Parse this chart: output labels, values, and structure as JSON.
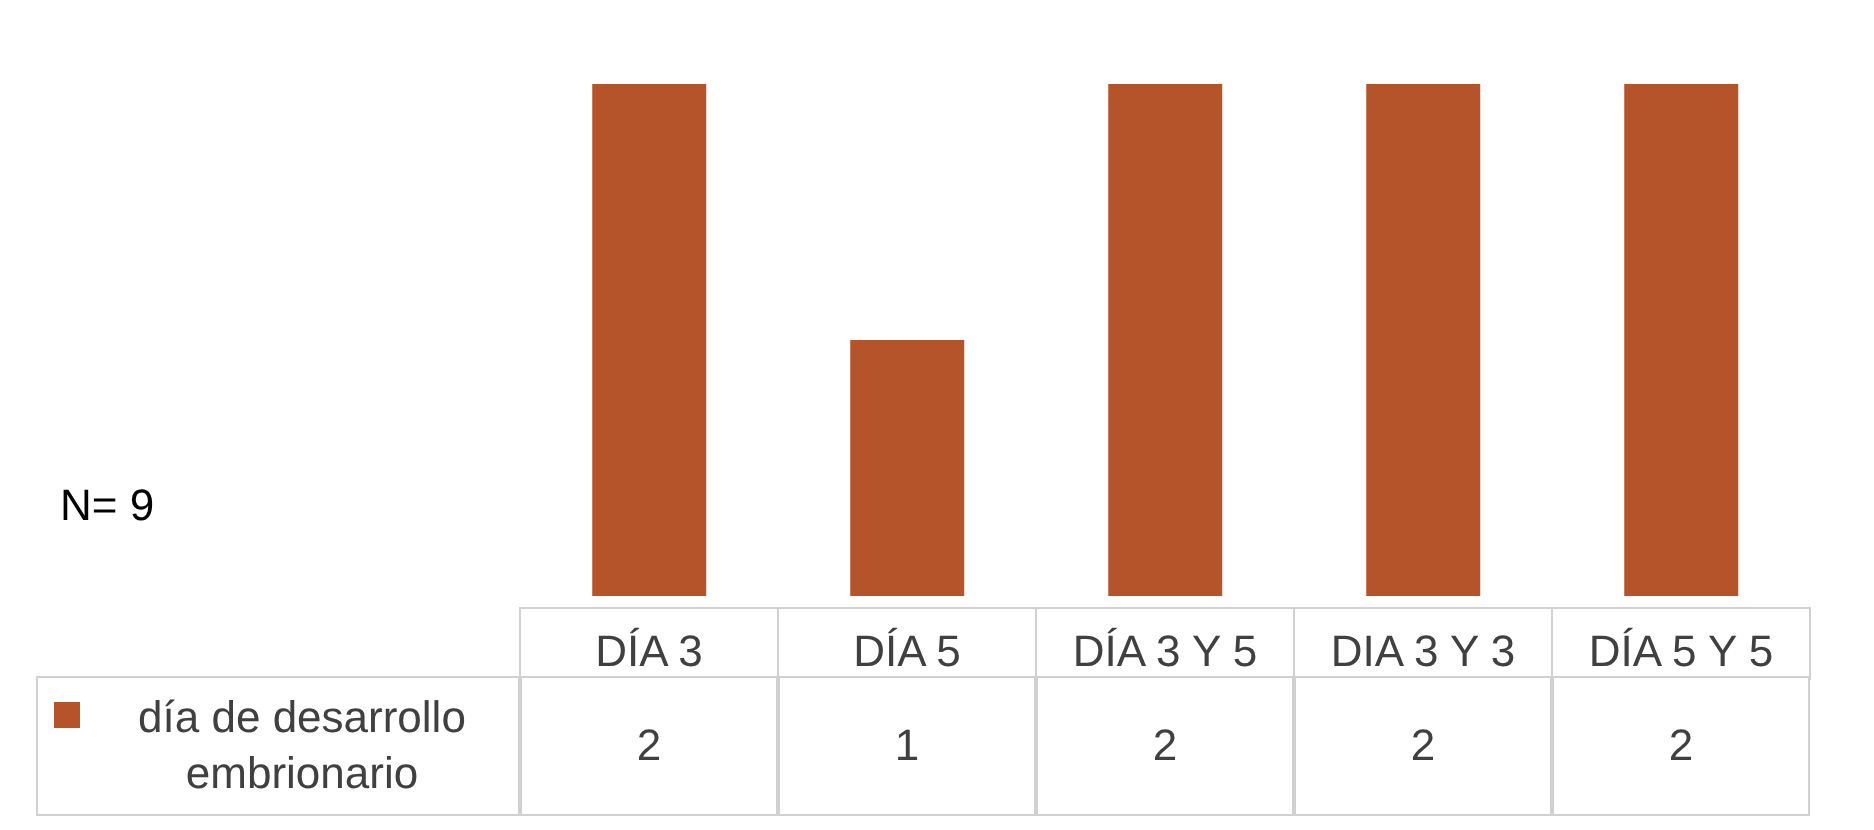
{
  "chart_data": {
    "type": "bar",
    "categories": [
      "DÍA 3",
      "DÍA 5",
      "DÍA 3 Y 5",
      "DIA 3 Y 3",
      "DÍA 5 Y 5"
    ],
    "series": [
      {
        "name": "día de desarrollo embrionario",
        "color": "#b5532b",
        "values": [
          2,
          1,
          2,
          2,
          2
        ]
      }
    ],
    "data_labels": true,
    "annotations": [
      "N= 9"
    ]
  }
}
